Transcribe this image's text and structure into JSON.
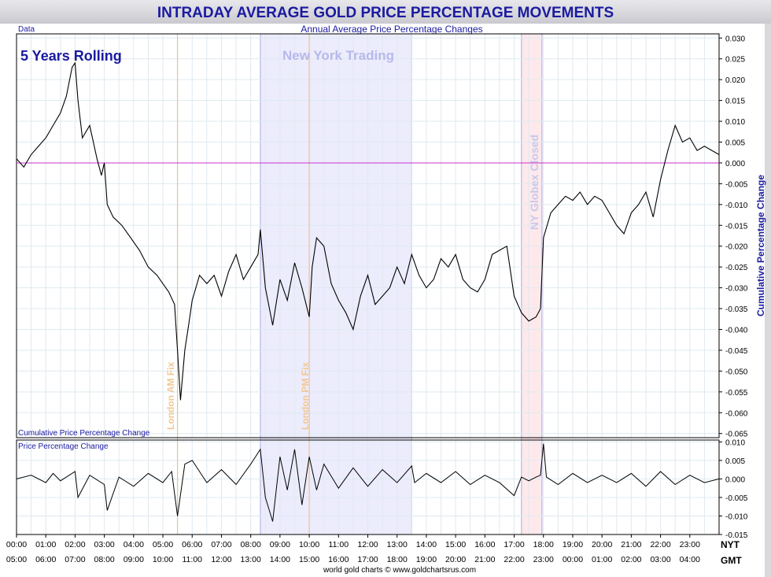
{
  "title": "INTRADAY AVERAGE GOLD PRICE PERCENTAGE MOVEMENTS",
  "subtitle": "Annual Average Price Percentage Changes",
  "corner_label": "Data",
  "rolling_label": "5 Years Rolling",
  "session_label": "New York Trading",
  "fix_am_label": "London AM Fix",
  "fix_pm_label": "London PM Fix",
  "globex_label": "NY Globex Closed",
  "upper_panel_label": "Cumulative Price Percentage Change",
  "lower_panel_label": "Price Percentage Change",
  "right_axis_label": "Cumulative Percentage Change",
  "tz_top": "NYT",
  "tz_bottom": "GMT",
  "footer": "world gold charts © www.goldchartsrus.com",
  "colors": {
    "title": "#1a1aa0",
    "session_shade": "#ececfd",
    "globex_shade": "#fde9ec",
    "fix_line": "#f2b97a",
    "zero_line": "#cc33cc",
    "series": "#000000",
    "grid": "#dfe9ef"
  },
  "chart_data": [
    {
      "type": "line",
      "name": "upper",
      "x_ticks_nyt": [
        "00:00",
        "01:00",
        "02:00",
        "03:00",
        "04:00",
        "05:00",
        "06:00",
        "07:00",
        "08:00",
        "09:00",
        "10:00",
        "11:00",
        "12:00",
        "13:00",
        "14:00",
        "15:00",
        "16:00",
        "17:00",
        "18:00",
        "19:00",
        "20:00",
        "21:00",
        "22:00",
        "23:00"
      ],
      "x_ticks_gmt": [
        "05:00",
        "06:00",
        "07:00",
        "08:00",
        "09:00",
        "10:00",
        "11:00",
        "12:00",
        "13:00",
        "14:00",
        "15:00",
        "16:00",
        "17:00",
        "18:00",
        "19:00",
        "20:00",
        "21:00",
        "22:00",
        "23:00",
        "00:00",
        "01:00",
        "02:00",
        "03:00",
        "04:00"
      ],
      "y_ticks": [
        "0.030",
        "0.025",
        "0.020",
        "0.015",
        "0.010",
        "0.005",
        "0.000",
        "-0.005",
        "-0.010",
        "-0.015",
        "-0.020",
        "-0.025",
        "-0.030",
        "-0.035",
        "-0.040",
        "-0.045",
        "-0.050",
        "-0.055",
        "-0.060",
        "-0.065"
      ],
      "ylim": [
        -0.066,
        0.031
      ],
      "xlim": [
        0,
        24
      ],
      "session_hours": [
        8.33,
        13.5
      ],
      "globex_hours": [
        17.25,
        17.95
      ],
      "fix_hours": [
        5.5,
        10.0
      ],
      "points": [
        [
          0.0,
          0.001
        ],
        [
          0.25,
          -0.001
        ],
        [
          0.5,
          0.002
        ],
        [
          0.75,
          0.004
        ],
        [
          1.0,
          0.006
        ],
        [
          1.25,
          0.009
        ],
        [
          1.5,
          0.012
        ],
        [
          1.7,
          0.016
        ],
        [
          1.9,
          0.023
        ],
        [
          2.0,
          0.024
        ],
        [
          2.1,
          0.015
        ],
        [
          2.25,
          0.006
        ],
        [
          2.5,
          0.009
        ],
        [
          2.75,
          0.001
        ],
        [
          2.9,
          -0.003
        ],
        [
          3.0,
          0.0
        ],
        [
          3.1,
          -0.01
        ],
        [
          3.3,
          -0.013
        ],
        [
          3.6,
          -0.015
        ],
        [
          3.9,
          -0.018
        ],
        [
          4.2,
          -0.021
        ],
        [
          4.5,
          -0.025
        ],
        [
          4.8,
          -0.027
        ],
        [
          5.0,
          -0.029
        ],
        [
          5.2,
          -0.031
        ],
        [
          5.4,
          -0.034
        ],
        [
          5.5,
          -0.045
        ],
        [
          5.6,
          -0.057
        ],
        [
          5.75,
          -0.045
        ],
        [
          5.9,
          -0.038
        ],
        [
          6.0,
          -0.033
        ],
        [
          6.25,
          -0.027
        ],
        [
          6.5,
          -0.029
        ],
        [
          6.75,
          -0.027
        ],
        [
          7.0,
          -0.032
        ],
        [
          7.25,
          -0.026
        ],
        [
          7.5,
          -0.022
        ],
        [
          7.75,
          -0.028
        ],
        [
          8.0,
          -0.025
        ],
        [
          8.25,
          -0.022
        ],
        [
          8.33,
          -0.016
        ],
        [
          8.5,
          -0.03
        ],
        [
          8.75,
          -0.039
        ],
        [
          9.0,
          -0.028
        ],
        [
          9.25,
          -0.033
        ],
        [
          9.5,
          -0.024
        ],
        [
          9.75,
          -0.03
        ],
        [
          10.0,
          -0.037
        ],
        [
          10.1,
          -0.025
        ],
        [
          10.25,
          -0.018
        ],
        [
          10.5,
          -0.02
        ],
        [
          10.75,
          -0.029
        ],
        [
          11.0,
          -0.033
        ],
        [
          11.25,
          -0.036
        ],
        [
          11.5,
          -0.04
        ],
        [
          11.75,
          -0.032
        ],
        [
          12.0,
          -0.027
        ],
        [
          12.25,
          -0.034
        ],
        [
          12.5,
          -0.032
        ],
        [
          12.75,
          -0.03
        ],
        [
          13.0,
          -0.025
        ],
        [
          13.25,
          -0.029
        ],
        [
          13.5,
          -0.022
        ],
        [
          13.75,
          -0.027
        ],
        [
          14.0,
          -0.03
        ],
        [
          14.25,
          -0.028
        ],
        [
          14.5,
          -0.023
        ],
        [
          14.75,
          -0.025
        ],
        [
          15.0,
          -0.022
        ],
        [
          15.25,
          -0.028
        ],
        [
          15.5,
          -0.03
        ],
        [
          15.75,
          -0.031
        ],
        [
          16.0,
          -0.028
        ],
        [
          16.25,
          -0.022
        ],
        [
          16.5,
          -0.021
        ],
        [
          16.75,
          -0.02
        ],
        [
          17.0,
          -0.032
        ],
        [
          17.25,
          -0.036
        ],
        [
          17.5,
          -0.038
        ],
        [
          17.75,
          -0.037
        ],
        [
          17.9,
          -0.035
        ],
        [
          18.0,
          -0.018
        ],
        [
          18.25,
          -0.012
        ],
        [
          18.5,
          -0.01
        ],
        [
          18.75,
          -0.008
        ],
        [
          19.0,
          -0.009
        ],
        [
          19.25,
          -0.007
        ],
        [
          19.5,
          -0.01
        ],
        [
          19.75,
          -0.008
        ],
        [
          20.0,
          -0.009
        ],
        [
          20.25,
          -0.012
        ],
        [
          20.5,
          -0.015
        ],
        [
          20.75,
          -0.017
        ],
        [
          21.0,
          -0.012
        ],
        [
          21.25,
          -0.01
        ],
        [
          21.5,
          -0.007
        ],
        [
          21.75,
          -0.013
        ],
        [
          22.0,
          -0.004
        ],
        [
          22.25,
          0.003
        ],
        [
          22.5,
          0.009
        ],
        [
          22.75,
          0.005
        ],
        [
          23.0,
          0.006
        ],
        [
          23.25,
          0.003
        ],
        [
          23.5,
          0.004
        ],
        [
          23.75,
          0.003
        ],
        [
          24.0,
          0.002
        ]
      ]
    },
    {
      "type": "line",
      "name": "lower",
      "y_ticks": [
        "0.010",
        "0.005",
        "0.000",
        "-0.005",
        "-0.010",
        "-0.015"
      ],
      "ylim": [
        -0.015,
        0.0105
      ],
      "xlim": [
        0,
        24
      ],
      "points": [
        [
          0.0,
          0.0
        ],
        [
          0.5,
          0.001
        ],
        [
          1.0,
          -0.001
        ],
        [
          1.25,
          0.0015
        ],
        [
          1.5,
          -0.0005
        ],
        [
          2.0,
          0.002
        ],
        [
          2.1,
          -0.005
        ],
        [
          2.5,
          0.001
        ],
        [
          3.0,
          -0.0015
        ],
        [
          3.1,
          -0.0085
        ],
        [
          3.5,
          0.0005
        ],
        [
          4.0,
          -0.002
        ],
        [
          4.5,
          0.0015
        ],
        [
          5.0,
          -0.001
        ],
        [
          5.3,
          0.002
        ],
        [
          5.5,
          -0.01
        ],
        [
          5.75,
          0.004
        ],
        [
          6.0,
          0.005
        ],
        [
          6.5,
          -0.001
        ],
        [
          7.0,
          0.0025
        ],
        [
          7.5,
          -0.0015
        ],
        [
          8.0,
          0.004
        ],
        [
          8.33,
          0.008
        ],
        [
          8.5,
          -0.005
        ],
        [
          8.75,
          -0.0115
        ],
        [
          9.0,
          0.006
        ],
        [
          9.25,
          -0.003
        ],
        [
          9.5,
          0.008
        ],
        [
          9.75,
          -0.007
        ],
        [
          10.0,
          0.006
        ],
        [
          10.25,
          -0.003
        ],
        [
          10.5,
          0.004
        ],
        [
          11.0,
          -0.0025
        ],
        [
          11.5,
          0.003
        ],
        [
          12.0,
          -0.002
        ],
        [
          12.5,
          0.0025
        ],
        [
          13.0,
          -0.001
        ],
        [
          13.5,
          0.0035
        ],
        [
          13.6,
          -0.001
        ],
        [
          14.0,
          0.0015
        ],
        [
          14.5,
          -0.001
        ],
        [
          15.0,
          0.002
        ],
        [
          15.5,
          -0.0015
        ],
        [
          16.0,
          0.001
        ],
        [
          16.5,
          -0.001
        ],
        [
          17.0,
          -0.0045
        ],
        [
          17.25,
          0.0005
        ],
        [
          17.5,
          -0.0005
        ],
        [
          17.75,
          0.0005
        ],
        [
          17.9,
          0.001
        ],
        [
          18.0,
          0.0095
        ],
        [
          18.1,
          0.0005
        ],
        [
          18.5,
          -0.0015
        ],
        [
          19.0,
          0.0015
        ],
        [
          19.5,
          -0.001
        ],
        [
          20.0,
          0.001
        ],
        [
          20.5,
          -0.001
        ],
        [
          21.0,
          0.0015
        ],
        [
          21.5,
          -0.002
        ],
        [
          22.0,
          0.002
        ],
        [
          22.5,
          -0.0015
        ],
        [
          23.0,
          0.001
        ],
        [
          23.5,
          -0.001
        ],
        [
          24.0,
          0.0
        ]
      ]
    }
  ]
}
